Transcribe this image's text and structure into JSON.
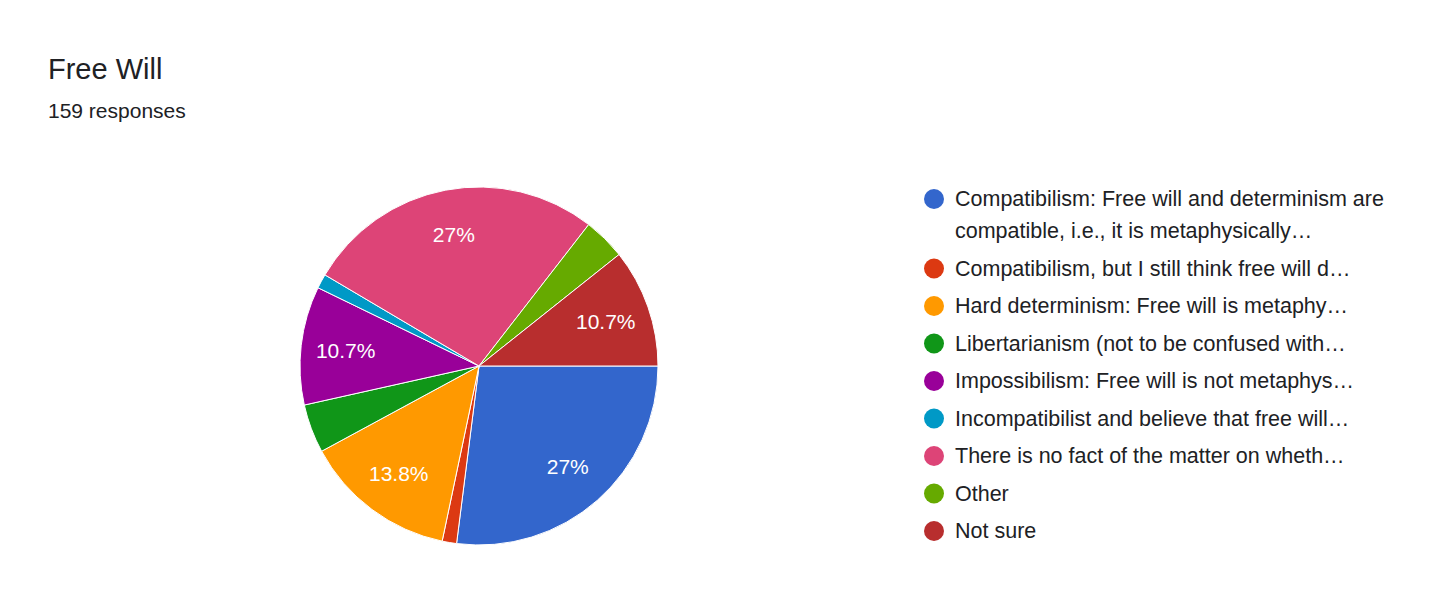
{
  "chart_data": {
    "type": "pie",
    "title": "Free Will",
    "subtitle": "159 responses",
    "categories": [
      "Compatibilism: Free will and determinism are compatible, i.e., it is metaphysically…",
      "Compatibilism, but I still think free will d…",
      "Hard determinism: Free will is metaphy…",
      "Libertarianism (not to be confused with…",
      "Impossibilism: Free will is not metaphys…",
      "Incompatibilist and believe that free will…",
      "There is no fact of the matter on wheth…",
      "Other",
      "Not sure"
    ],
    "values": [
      27,
      1.3,
      13.8,
      4.4,
      10.7,
      1.3,
      27,
      3.8,
      10.7
    ],
    "value_labels": [
      "27%",
      null,
      "13.8%",
      null,
      "10.7%",
      null,
      "27%",
      null,
      "10.7%"
    ],
    "colors": [
      "#3366cc",
      "#dc3912",
      "#ff9900",
      "#109618",
      "#990099",
      "#0099c6",
      "#dd4477",
      "#66aa00",
      "#b82e2e"
    ],
    "data_labels": true,
    "legend": "right"
  }
}
